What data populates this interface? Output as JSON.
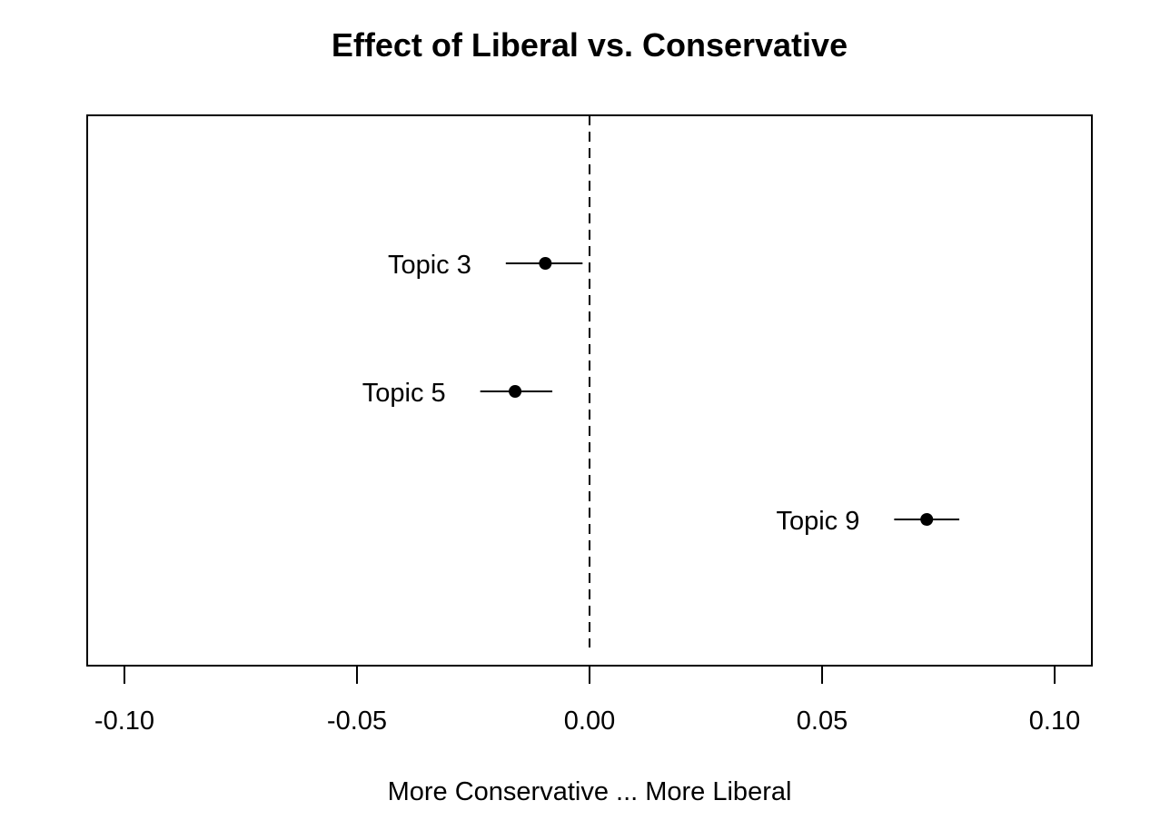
{
  "chart_data": {
    "type": "scatter",
    "title": "Effect of Liberal vs. Conservative",
    "xlabel": "More Conservative ... More Liberal",
    "ylabel": "",
    "xlim": [
      -0.108,
      0.108
    ],
    "x_ticks": [
      -0.1,
      -0.05,
      0.0,
      0.05,
      0.1
    ],
    "x_tick_labels": [
      "-0.10",
      "-0.05",
      "0.00",
      "0.05",
      "0.10"
    ],
    "reference_line": {
      "x": 0.0,
      "style": "dashed"
    },
    "grid": false,
    "points": [
      {
        "label": "Topic 3",
        "estimate": -0.0095,
        "ci": [
          -0.018,
          -0.0015
        ]
      },
      {
        "label": "Topic 5",
        "estimate": -0.016,
        "ci": [
          -0.0235,
          -0.008
        ]
      },
      {
        "label": "Topic 9",
        "estimate": 0.0725,
        "ci": [
          0.0655,
          0.0795
        ]
      }
    ]
  }
}
